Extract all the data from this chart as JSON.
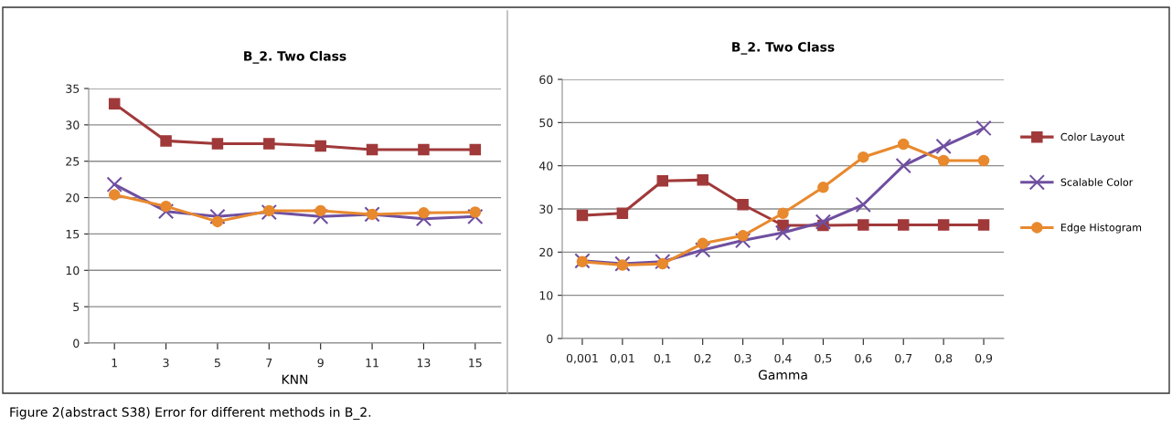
{
  "chart_data": [
    {
      "type": "line",
      "title": "B_2. Two Class",
      "xlabel": "KNN",
      "categories": [
        "1",
        "3",
        "5",
        "7",
        "9",
        "11",
        "13",
        "15"
      ],
      "ylim": [
        0,
        35
      ],
      "yticks": [
        0,
        5,
        10,
        15,
        20,
        25,
        30,
        35
      ],
      "grid": "y",
      "legend": false,
      "series": [
        {
          "color": "#a0393a",
          "marker": "square",
          "values": [
            32.9,
            27.8,
            27.4,
            27.4,
            27.1,
            26.6,
            26.6,
            26.6
          ]
        },
        {
          "color": "#6f4fa0",
          "marker": "cross",
          "values": [
            21.8,
            18.1,
            17.4,
            18.0,
            17.4,
            17.7,
            17.1,
            17.4
          ]
        },
        {
          "color": "#e8892e",
          "marker": "circle",
          "values": [
            20.4,
            18.8,
            16.7,
            18.2,
            18.2,
            17.7,
            17.9,
            18.0
          ]
        }
      ]
    },
    {
      "type": "line",
      "title": "B_2. Two Class",
      "xlabel": "Gamma",
      "categories": [
        "0,001",
        "0,01",
        "0,1",
        "0,2",
        "0,3",
        "0,4",
        "0,5",
        "0,6",
        "0,7",
        "0,8",
        "0,9"
      ],
      "ylim": [
        0,
        60
      ],
      "yticks": [
        0,
        10,
        20,
        30,
        40,
        50,
        60
      ],
      "grid": "y",
      "legend": "right",
      "annotations": [
        "Figure 2(abstract S38) Error for different methods in B_2."
      ],
      "series": [
        {
          "name": "Color Layout",
          "color": "#a0393a",
          "marker": "square",
          "values": [
            28.5,
            29,
            36.5,
            36.7,
            31,
            26.2,
            26.2,
            26.3,
            26.3,
            26.3,
            26.3
          ]
        },
        {
          "name": "Scalable Color",
          "color": "#6f4fa0",
          "marker": "cross",
          "values": [
            18,
            17.3,
            17.8,
            20.5,
            22.7,
            24.5,
            27,
            31,
            40,
            44.5,
            48.7
          ]
        },
        {
          "name": "Edge Histogram",
          "color": "#e8892e",
          "marker": "circle",
          "values": [
            17.8,
            17,
            17.3,
            22,
            23.8,
            29,
            35,
            42,
            45,
            41.2,
            41.2
          ]
        }
      ]
    }
  ]
}
